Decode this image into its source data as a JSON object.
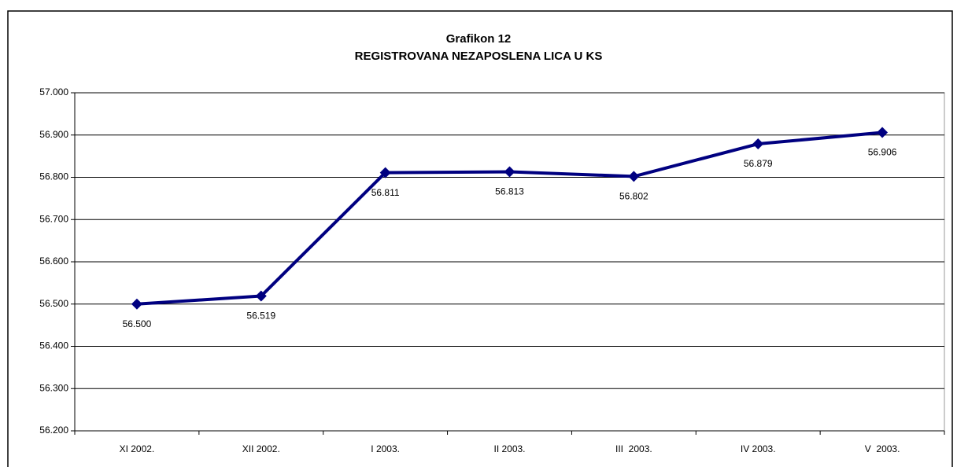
{
  "chart_data": {
    "type": "line",
    "title": "Grafikon 12",
    "subtitle": "REGISTROVANA NEZAPOSLENA LICA U KS",
    "categories": [
      "XI 2002.",
      "XII 2002.",
      "I 2003.",
      "II 2003.",
      "III  2003.",
      "IV 2003.",
      "V  2003."
    ],
    "values": [
      56500,
      56519,
      56811,
      56813,
      56802,
      56879,
      56906
    ],
    "value_labels": [
      "56.500",
      "56.519",
      "56.811",
      "56.813",
      "56.802",
      "56.879",
      "56.906"
    ],
    "color": "#000080",
    "ylim": [
      56200,
      57000
    ],
    "yticks": [
      {
        "value": 56200,
        "label": "56.200"
      },
      {
        "value": 56300,
        "label": "56.300"
      },
      {
        "value": 56400,
        "label": "56.400"
      },
      {
        "value": 56500,
        "label": "56.500"
      },
      {
        "value": 56600,
        "label": "56.600"
      },
      {
        "value": 56700,
        "label": "56.700"
      },
      {
        "value": 56800,
        "label": "56.800"
      },
      {
        "value": 56900,
        "label": "56.900"
      },
      {
        "value": 57000,
        "label": "57.000"
      }
    ],
    "grid": true
  }
}
